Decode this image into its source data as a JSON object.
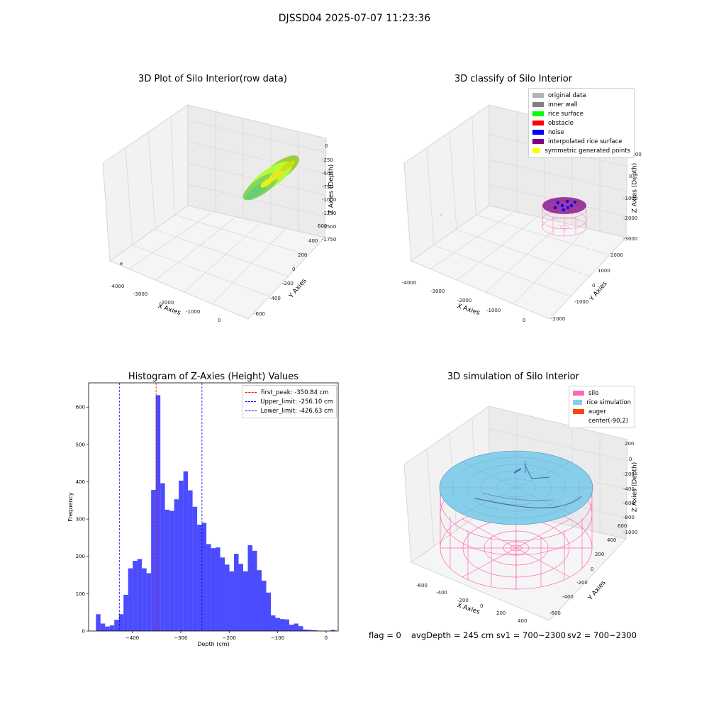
{
  "figure_title": "DJSSD04 2025-07-07 11:23:36",
  "panel1": {
    "title": "3D Plot of Silo Interior(row data)",
    "xlabel": "X Axies",
    "ylabel": "Y Axies",
    "zlabel": "Z Axies (Depth)",
    "xticks": [
      "-4000",
      "-3000",
      "-2000",
      "-1000",
      "0"
    ],
    "yticks": [
      "-600",
      "-400",
      "-200",
      "0",
      "200",
      "400",
      "600"
    ],
    "zticks": [
      "0",
      "-250",
      "-500",
      "-750",
      "-1000",
      "-1250",
      "-1500",
      "-1750"
    ]
  },
  "panel2": {
    "title": "3D classify of Silo Interior",
    "xlabel": "X Axies",
    "ylabel": "Y Axies",
    "zlabel": "Z Axies (Depth)",
    "xticks": [
      "-4000",
      "-3000",
      "-2000",
      "-1000",
      "0"
    ],
    "yticks": [
      "-2000",
      "-1000",
      "0",
      "1000",
      "2000"
    ],
    "zticks": [
      "1000",
      "0",
      "-1000",
      "-2000",
      "-3000"
    ],
    "legend": [
      {
        "label": "original data",
        "color": "#b3b3b3"
      },
      {
        "label": "inner wall",
        "color": "#808080"
      },
      {
        "label": "rice surface",
        "color": "#00ff00"
      },
      {
        "label": "obstacle",
        "color": "#ff0000"
      },
      {
        "label": "noise",
        "color": "#0000ff"
      },
      {
        "label": "interpolated rice surface",
        "color": "#800080"
      },
      {
        "label": "symmetric generated points",
        "color": "#ffff00"
      }
    ]
  },
  "panel4": {
    "title": "3D simulation of Silo Interior",
    "xlabel": "X Axies",
    "ylabel": "Y Axies",
    "zlabel": "Z Axies (Depth)",
    "xticks": [
      "-600",
      "-400",
      "-200",
      "0",
      "200",
      "400"
    ],
    "yticks": [
      "-600",
      "-400",
      "-200",
      "0",
      "200",
      "400",
      "600"
    ],
    "zticks": [
      "200",
      "0",
      "-200",
      "-400",
      "-600",
      "-800",
      "-1000"
    ],
    "legend": [
      {
        "label": "silo",
        "color": "#ff69b4"
      },
      {
        "label": "rice simulation",
        "color": "#87ceeb"
      },
      {
        "label": "auger",
        "color": "#ff4500"
      },
      {
        "label": "center(-90,2)",
        "color": ""
      }
    ]
  },
  "footer": {
    "flag": "flag = 0",
    "avg": "avgDepth = 245 cm",
    "sv1": "sv1 = 700~2300",
    "sv2": "sv2 = 700~2300"
  },
  "chart_data": [
    {
      "type": "bar",
      "title": "Histogram of Z-Axies (Height) Values",
      "xlabel": "Depth (cm)",
      "ylabel": "Frequency",
      "xlim": [
        -490,
        25
      ],
      "ylim": [
        0,
        665
      ],
      "xticks": [
        -400,
        -300,
        -200,
        -100,
        0
      ],
      "yticks": [
        0,
        100,
        200,
        300,
        400,
        500,
        600
      ],
      "bar_color": "#0000ff",
      "bin_start": -475,
      "bin_width": 9.5,
      "values": [
        45,
        20,
        12,
        15,
        30,
        45,
        97,
        168,
        188,
        193,
        168,
        155,
        378,
        632,
        396,
        325,
        322,
        353,
        403,
        428,
        377,
        333,
        285,
        290,
        233,
        222,
        224,
        197,
        178,
        160,
        207,
        180,
        160,
        230,
        215,
        163,
        135,
        103,
        42,
        35,
        32,
        31,
        17,
        20,
        13,
        4,
        3,
        2,
        1,
        0,
        0,
        3
      ],
      "vlines": [
        {
          "x": -350.84,
          "color": "#ff0000",
          "label": "first_peak: -350.84 cm"
        },
        {
          "x": -256.1,
          "color": "#0000ff",
          "label": "Upper_limit: -256.10 cm"
        },
        {
          "x": -426.63,
          "color": "#0000ff",
          "label": "Lower_limit: -426.63 cm"
        }
      ],
      "grid": false,
      "legend_position": "top-right"
    }
  ]
}
